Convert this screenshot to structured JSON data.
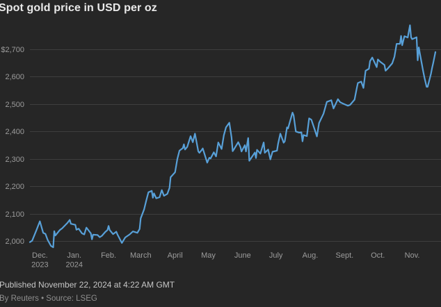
{
  "title": "Spot gold price in USD per oz",
  "footer": {
    "published": "Published November 22, 2024 at 4:22 AM GMT",
    "byline": "By Reuters • Source: LSEG"
  },
  "colors": {
    "background": "#262626",
    "line": "#58a0d8",
    "grid": "#3e3e3e",
    "axis_text": "#9c9c9c",
    "title_text": "#e9e9e9",
    "published_text": "#c6c6c6",
    "byline_text": "#8e8e8e"
  },
  "chart_data": {
    "type": "line",
    "title": "Spot gold price in USD per oz",
    "xlabel": "",
    "ylabel": "USD per oz",
    "ylim": [
      2000,
      2700
    ],
    "grid": true,
    "legend": "none",
    "x_range": [
      "2023-11-22",
      "2024-11-22"
    ],
    "y_ticks": [
      {
        "label": "$2,700",
        "value": 2700
      },
      {
        "label": "2,600",
        "value": 2600
      },
      {
        "label": "2,500",
        "value": 2500
      },
      {
        "label": "2,400",
        "value": 2400
      },
      {
        "label": "2,300",
        "value": 2300
      },
      {
        "label": "2,200",
        "value": 2200
      },
      {
        "label": "2,100",
        "value": 2100
      },
      {
        "label": "2,000",
        "value": 2000
      }
    ],
    "x_ticks": [
      {
        "label": "Dec.",
        "sub": "2023",
        "date": "2023-12-01"
      },
      {
        "label": "Jan.",
        "sub": "2024",
        "date": "2024-01-01"
      },
      {
        "label": "Feb.",
        "date": "2024-02-01"
      },
      {
        "label": "March",
        "date": "2024-03-01"
      },
      {
        "label": "April",
        "date": "2024-04-01"
      },
      {
        "label": "May",
        "date": "2024-05-01"
      },
      {
        "label": "June",
        "date": "2024-06-01"
      },
      {
        "label": "July",
        "date": "2024-07-01"
      },
      {
        "label": "Aug.",
        "date": "2024-08-01"
      },
      {
        "label": "Sept.",
        "date": "2024-09-01"
      },
      {
        "label": "Oct.",
        "date": "2024-10-01"
      },
      {
        "label": "Nov.",
        "date": "2024-11-01"
      }
    ],
    "series": [
      {
        "name": "Spot gold price (USD per oz)",
        "points": [
          [
            "2023-11-22",
            1996
          ],
          [
            "2023-11-24",
            2001
          ],
          [
            "2023-11-28",
            2041
          ],
          [
            "2023-12-01",
            2072
          ],
          [
            "2023-12-04",
            2030
          ],
          [
            "2023-12-06",
            2026
          ],
          [
            "2023-12-08",
            2004
          ],
          [
            "2023-12-11",
            1982
          ],
          [
            "2023-12-13",
            1977
          ],
          [
            "2023-12-14",
            2036
          ],
          [
            "2023-12-15",
            2020
          ],
          [
            "2023-12-19",
            2040
          ],
          [
            "2023-12-21",
            2046
          ],
          [
            "2023-12-26",
            2067
          ],
          [
            "2023-12-28",
            2077
          ],
          [
            "2023-12-29",
            2063
          ],
          [
            "2024-01-02",
            2059
          ],
          [
            "2024-01-03",
            2041
          ],
          [
            "2024-01-05",
            2045
          ],
          [
            "2024-01-08",
            2028
          ],
          [
            "2024-01-10",
            2024
          ],
          [
            "2024-01-12",
            2049
          ],
          [
            "2024-01-16",
            2028
          ],
          [
            "2024-01-17",
            2006
          ],
          [
            "2024-01-18",
            2023
          ],
          [
            "2024-01-22",
            2022
          ],
          [
            "2024-01-24",
            2014
          ],
          [
            "2024-01-26",
            2019
          ],
          [
            "2024-01-29",
            2033
          ],
          [
            "2024-01-31",
            2040
          ],
          [
            "2024-02-01",
            2055
          ],
          [
            "2024-02-02",
            2040
          ],
          [
            "2024-02-05",
            2025
          ],
          [
            "2024-02-08",
            2034
          ],
          [
            "2024-02-09",
            2024
          ],
          [
            "2024-02-13",
            1993
          ],
          [
            "2024-02-16",
            2013
          ],
          [
            "2024-02-20",
            2024
          ],
          [
            "2024-02-23",
            2035
          ],
          [
            "2024-02-27",
            2030
          ],
          [
            "2024-02-29",
            2044
          ],
          [
            "2024-03-01",
            2083
          ],
          [
            "2024-03-04",
            2115
          ],
          [
            "2024-03-06",
            2148
          ],
          [
            "2024-03-08",
            2178
          ],
          [
            "2024-03-11",
            2183
          ],
          [
            "2024-03-12",
            2158
          ],
          [
            "2024-03-13",
            2174
          ],
          [
            "2024-03-15",
            2156
          ],
          [
            "2024-03-18",
            2160
          ],
          [
            "2024-03-20",
            2186
          ],
          [
            "2024-03-22",
            2165
          ],
          [
            "2024-03-25",
            2172
          ],
          [
            "2024-03-27",
            2194
          ],
          [
            "2024-03-28",
            2233
          ],
          [
            "2024-04-01",
            2251
          ],
          [
            "2024-04-03",
            2299
          ],
          [
            "2024-04-05",
            2330
          ],
          [
            "2024-04-08",
            2339
          ],
          [
            "2024-04-09",
            2353
          ],
          [
            "2024-04-10",
            2334
          ],
          [
            "2024-04-12",
            2344
          ],
          [
            "2024-04-15",
            2383
          ],
          [
            "2024-04-17",
            2361
          ],
          [
            "2024-04-19",
            2392
          ],
          [
            "2024-04-22",
            2327
          ],
          [
            "2024-04-23",
            2322
          ],
          [
            "2024-04-25",
            2332
          ],
          [
            "2024-04-26",
            2338
          ],
          [
            "2024-04-30",
            2286
          ],
          [
            "2024-05-02",
            2304
          ],
          [
            "2024-05-03",
            2301
          ],
          [
            "2024-05-06",
            2324
          ],
          [
            "2024-05-08",
            2309
          ],
          [
            "2024-05-10",
            2360
          ],
          [
            "2024-05-13",
            2336
          ],
          [
            "2024-05-15",
            2386
          ],
          [
            "2024-05-17",
            2415
          ],
          [
            "2024-05-20",
            2432
          ],
          [
            "2024-05-22",
            2378
          ],
          [
            "2024-05-23",
            2328
          ],
          [
            "2024-05-24",
            2334
          ],
          [
            "2024-05-28",
            2361
          ],
          [
            "2024-05-30",
            2343
          ],
          [
            "2024-05-31",
            2327
          ],
          [
            "2024-06-03",
            2350
          ],
          [
            "2024-06-04",
            2327
          ],
          [
            "2024-06-06",
            2376
          ],
          [
            "2024-06-07",
            2293
          ],
          [
            "2024-06-10",
            2311
          ],
          [
            "2024-06-12",
            2323
          ],
          [
            "2024-06-13",
            2303
          ],
          [
            "2024-06-14",
            2333
          ],
          [
            "2024-06-17",
            2319
          ],
          [
            "2024-06-20",
            2360
          ],
          [
            "2024-06-21",
            2322
          ],
          [
            "2024-06-24",
            2334
          ],
          [
            "2024-06-26",
            2298
          ],
          [
            "2024-06-28",
            2326
          ],
          [
            "2024-07-02",
            2330
          ],
          [
            "2024-07-03",
            2355
          ],
          [
            "2024-07-05",
            2392
          ],
          [
            "2024-07-08",
            2359
          ],
          [
            "2024-07-09",
            2364
          ],
          [
            "2024-07-11",
            2415
          ],
          [
            "2024-07-12",
            2411
          ],
          [
            "2024-07-16",
            2469
          ],
          [
            "2024-07-17",
            2459
          ],
          [
            "2024-07-19",
            2400
          ],
          [
            "2024-07-22",
            2396
          ],
          [
            "2024-07-24",
            2397
          ],
          [
            "2024-07-25",
            2364
          ],
          [
            "2024-07-26",
            2387
          ],
          [
            "2024-07-29",
            2383
          ],
          [
            "2024-07-31",
            2448
          ],
          [
            "2024-08-02",
            2443
          ],
          [
            "2024-08-05",
            2407
          ],
          [
            "2024-08-07",
            2382
          ],
          [
            "2024-08-09",
            2431
          ],
          [
            "2024-08-13",
            2465
          ],
          [
            "2024-08-16",
            2508
          ],
          [
            "2024-08-20",
            2514
          ],
          [
            "2024-08-22",
            2484
          ],
          [
            "2024-08-26",
            2518
          ],
          [
            "2024-08-28",
            2507
          ],
          [
            "2024-08-30",
            2503
          ],
          [
            "2024-09-04",
            2494
          ],
          [
            "2024-09-06",
            2497
          ],
          [
            "2024-09-10",
            2516
          ],
          [
            "2024-09-12",
            2558
          ],
          [
            "2024-09-13",
            2577
          ],
          [
            "2024-09-16",
            2582
          ],
          [
            "2024-09-18",
            2559
          ],
          [
            "2024-09-20",
            2622
          ],
          [
            "2024-09-23",
            2629
          ],
          [
            "2024-09-24",
            2657
          ],
          [
            "2024-09-26",
            2670
          ],
          [
            "2024-09-30",
            2635
          ],
          [
            "2024-10-01",
            2663
          ],
          [
            "2024-10-03",
            2655
          ],
          [
            "2024-10-07",
            2643
          ],
          [
            "2024-10-08",
            2622
          ],
          [
            "2024-10-10",
            2630
          ],
          [
            "2024-10-14",
            2649
          ],
          [
            "2024-10-16",
            2673
          ],
          [
            "2024-10-18",
            2720
          ],
          [
            "2024-10-21",
            2720
          ],
          [
            "2024-10-22",
            2749
          ],
          [
            "2024-10-23",
            2715
          ],
          [
            "2024-10-25",
            2748
          ],
          [
            "2024-10-28",
            2743
          ],
          [
            "2024-10-30",
            2788
          ],
          [
            "2024-10-31",
            2744
          ],
          [
            "2024-11-01",
            2737
          ],
          [
            "2024-11-05",
            2744
          ],
          [
            "2024-11-06",
            2660
          ],
          [
            "2024-11-07",
            2707
          ],
          [
            "2024-11-08",
            2684
          ],
          [
            "2024-11-11",
            2618
          ],
          [
            "2024-11-12",
            2598
          ],
          [
            "2024-11-14",
            2563
          ],
          [
            "2024-11-15",
            2563
          ],
          [
            "2024-11-18",
            2611
          ],
          [
            "2024-11-19",
            2632
          ],
          [
            "2024-11-20",
            2650
          ],
          [
            "2024-11-21",
            2670
          ],
          [
            "2024-11-22",
            2690
          ]
        ]
      }
    ]
  }
}
